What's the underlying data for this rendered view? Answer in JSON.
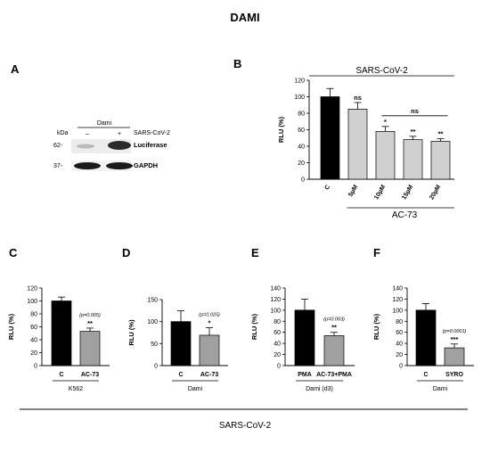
{
  "figure": {
    "title": "DAMI",
    "bottom_group_label": "SARS-CoV-2",
    "western": {
      "letter": "A",
      "kda": "kDa",
      "cell_line": "Dami",
      "lane_minus": "–",
      "lane_plus": "+",
      "condition": "SARS-CoV-2",
      "marker_top": "62-",
      "marker_bottom": "37-",
      "band_top": "Luciferase",
      "band_bottom": "GAPDH"
    }
  },
  "chart_data": [
    {
      "id": "B",
      "letter": "B",
      "type": "bar",
      "ylabel": "RLU (%)",
      "ylim": [
        0,
        120
      ],
      "yticks": [
        0,
        20,
        40,
        60,
        80,
        100,
        120
      ],
      "categories": [
        "C",
        "5µM",
        "10µM",
        "15µM",
        "20µM"
      ],
      "values": [
        100,
        85,
        58,
        48,
        46
      ],
      "errors": [
        10,
        8,
        6,
        4,
        3
      ],
      "colors": [
        "#000000",
        "#d0d0d0",
        "#d0d0d0",
        "#d0d0d0",
        "#d0d0d0"
      ],
      "significance": [
        "",
        "ns",
        "*",
        "**",
        "**"
      ],
      "top_label": "SARS-CoV-2",
      "bracket_label": "ns",
      "group_label": "AC-73",
      "grid": false
    },
    {
      "id": "C",
      "letter": "C",
      "type": "bar",
      "ylabel": "RLU (%)",
      "ylim": [
        0,
        120
      ],
      "yticks": [
        0,
        20,
        40,
        60,
        80,
        100,
        120
      ],
      "categories": [
        "C",
        "AC-73"
      ],
      "values": [
        100,
        53
      ],
      "errors": [
        6,
        5
      ],
      "colors": [
        "#000000",
        "#a0a0a0"
      ],
      "significance": [
        "",
        "**"
      ],
      "pvalue": "(p=0.005)",
      "group_label": "K562",
      "grid": false
    },
    {
      "id": "D",
      "letter": "D",
      "type": "bar",
      "ylabel": "RLU (%)",
      "ylim": [
        0,
        150
      ],
      "yticks": [
        0,
        50,
        100,
        150
      ],
      "categories": [
        "C",
        "AC-73"
      ],
      "values": [
        100,
        69
      ],
      "errors": [
        25,
        17
      ],
      "colors": [
        "#000000",
        "#a0a0a0"
      ],
      "significance": [
        "",
        "*"
      ],
      "pvalue": "(p=0.025)",
      "group_label": "Dami",
      "grid": false
    },
    {
      "id": "E",
      "letter": "E",
      "type": "bar",
      "ylabel": "RLU (%)",
      "ylim": [
        0,
        140
      ],
      "yticks": [
        0,
        20,
        40,
        60,
        80,
        100,
        120,
        140
      ],
      "categories": [
        "PMA",
        "AC-73+PMA"
      ],
      "values": [
        100,
        54
      ],
      "errors": [
        20,
        6
      ],
      "colors": [
        "#000000",
        "#a0a0a0"
      ],
      "significance": [
        "",
        "**"
      ],
      "pvalue": "(p=0.003)",
      "group_label": "Dami (d3)",
      "grid": false
    },
    {
      "id": "F",
      "letter": "F",
      "type": "bar",
      "ylabel": "RLU (%)",
      "ylim": [
        0,
        140
      ],
      "yticks": [
        0,
        20,
        40,
        60,
        80,
        100,
        120,
        140
      ],
      "categories": [
        "C",
        "SYRO"
      ],
      "values": [
        100,
        32
      ],
      "errors": [
        12,
        7
      ],
      "colors": [
        "#000000",
        "#a0a0a0"
      ],
      "significance": [
        "",
        "***"
      ],
      "pvalue": "(p=0.0001)",
      "group_label": "Dami",
      "grid": false
    }
  ]
}
